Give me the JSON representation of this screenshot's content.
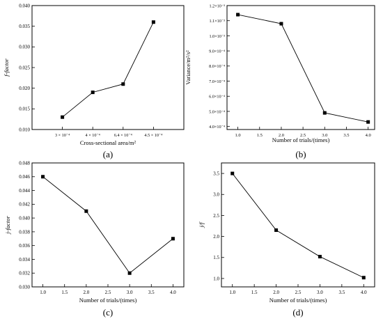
{
  "colors": {
    "ink": "#000000",
    "background": "#ffffff"
  },
  "chart_data": [
    {
      "panel_label": "(a)",
      "type": "line",
      "categories": [
        "3 × 10⁻⁴",
        "4 × 10⁻⁴",
        "6.4 × 10⁻⁴",
        "4.5 × 10⁻⁴"
      ],
      "values": [
        0.013,
        0.019,
        0.021,
        0.036
      ],
      "xlabel": "Cross-sectional area/m²",
      "ylabel": "f-factor",
      "ylim": [
        0.01,
        0.04
      ],
      "yticks": [
        "0.010",
        "0.015",
        "0.020",
        "0.025",
        "0.030",
        "0.035",
        "0.040"
      ],
      "marker": "square",
      "grid": false,
      "legend": "none"
    },
    {
      "panel_label": "(b)",
      "type": "line",
      "x": [
        1.0,
        2.0,
        3.0,
        4.0
      ],
      "values": [
        0.00114,
        0.00108,
        0.00049,
        0.00043
      ],
      "xlabel": "Number of trials/(times)",
      "ylabel": "Variance/m²/s²",
      "xlim": [
        0.75,
        4.15
      ],
      "xticks": [
        "1.0",
        "1.5",
        "2.0",
        "2.5",
        "3.0",
        "3.5",
        "4.0"
      ],
      "ylim": [
        0.00038,
        0.0012
      ],
      "ytick_values": [
        0.0004,
        0.0005,
        0.0006,
        0.0007,
        0.0008,
        0.0009,
        0.001,
        0.0011,
        0.0012
      ],
      "yticks": [
        "4.0×10⁻⁴",
        "5.0×10⁻⁴",
        "6.0×10⁻⁴",
        "7.0×10⁻⁴",
        "8.0×10⁻⁴",
        "9.0×10⁻⁴",
        "1.0×10⁻³",
        "1.1×10⁻³",
        "1.2×10⁻³"
      ],
      "marker": "square",
      "grid": false,
      "legend": "none"
    },
    {
      "panel_label": "(c)",
      "type": "line",
      "x": [
        1.0,
        2.0,
        3.0,
        4.0
      ],
      "values": [
        0.046,
        0.041,
        0.032,
        0.037
      ],
      "xlabel": "Number of trials/(times)",
      "ylabel": "j-factor",
      "xlim": [
        0.75,
        4.25
      ],
      "xticks": [
        "1.0",
        "1.5",
        "2.0",
        "2.5",
        "3.0",
        "3.5",
        "4.0"
      ],
      "ylim": [
        0.03,
        0.048
      ],
      "yticks": [
        "0.030",
        "0.032",
        "0.034",
        "0.036",
        "0.038",
        "0.040",
        "0.042",
        "0.044",
        "0.046",
        "0.048"
      ],
      "marker": "square",
      "grid": false,
      "legend": "none"
    },
    {
      "panel_label": "(d)",
      "type": "line",
      "x": [
        1.0,
        2.0,
        3.0,
        4.0
      ],
      "values": [
        3.5,
        2.15,
        1.52,
        1.02
      ],
      "xlabel": "Number of trials/(times)",
      "ylabel": "j/f",
      "xlim": [
        0.75,
        4.25
      ],
      "xticks": [
        "1.0",
        "1.5",
        "2.0",
        "2.5",
        "3.0",
        "3.5",
        "4.0"
      ],
      "ylim": [
        0.8,
        3.75
      ],
      "yticks": [
        "1.0",
        "1.5",
        "2.0",
        "2.5",
        "3.0",
        "3.5"
      ],
      "marker": "square",
      "grid": false,
      "legend": "none"
    }
  ]
}
